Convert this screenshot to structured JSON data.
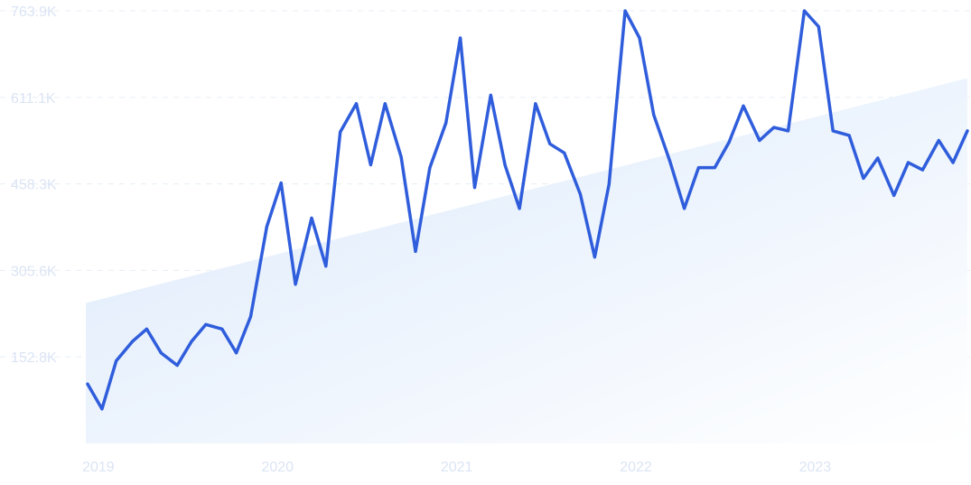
{
  "colors": {
    "line": "#2f5ddc",
    "trend_fill_start": "#dbe9fb",
    "trend_fill_end": "#ffffff",
    "grid": "#e8eef7",
    "tick_label": "#dbe4f4"
  },
  "chart_data": {
    "type": "line",
    "title": "",
    "xlabel": "",
    "ylabel": "",
    "grid": true,
    "legend": "none",
    "y_ticks": [
      "152.8K",
      "305.6K",
      "458.3K",
      "611.1K",
      "763.9K"
    ],
    "y_tick_values": [
      152.8,
      305.6,
      458.3,
      611.1,
      763.9
    ],
    "x_ticks": [
      "2019",
      "2020",
      "2021",
      "2022",
      "2023"
    ],
    "x_tick_values": [
      2019,
      2020,
      2021,
      2022,
      2023
    ],
    "xlim": [
      2018.93,
      2023.77
    ],
    "ylim": [
      0,
      763.9
    ],
    "series": [
      {
        "values": [
          [
            2018.94,
            105
          ],
          [
            2019.02,
            61
          ],
          [
            2019.1,
            146
          ],
          [
            2019.19,
            180
          ],
          [
            2019.27,
            202
          ],
          [
            2019.35,
            160
          ],
          [
            2019.44,
            138
          ],
          [
            2019.52,
            180
          ],
          [
            2019.6,
            210
          ],
          [
            2019.69,
            202
          ],
          [
            2019.77,
            160
          ],
          [
            2019.85,
            224
          ],
          [
            2019.94,
            383
          ],
          [
            2020.02,
            460
          ],
          [
            2020.1,
            281
          ],
          [
            2020.19,
            398
          ],
          [
            2020.27,
            313
          ],
          [
            2020.35,
            550
          ],
          [
            2020.44,
            600
          ],
          [
            2020.52,
            492
          ],
          [
            2020.6,
            600
          ],
          [
            2020.69,
            506
          ],
          [
            2020.77,
            339
          ],
          [
            2020.85,
            487
          ],
          [
            2020.94,
            566
          ],
          [
            2021.02,
            716
          ],
          [
            2021.1,
            452
          ],
          [
            2021.19,
            615
          ],
          [
            2021.27,
            491
          ],
          [
            2021.35,
            415
          ],
          [
            2021.44,
            600
          ],
          [
            2021.52,
            529
          ],
          [
            2021.6,
            513
          ],
          [
            2021.69,
            440
          ],
          [
            2021.77,
            329
          ],
          [
            2021.85,
            458
          ],
          [
            2021.94,
            763.9
          ],
          [
            2022.02,
            716
          ],
          [
            2022.1,
            580
          ],
          [
            2022.19,
            498
          ],
          [
            2022.27,
            415
          ],
          [
            2022.35,
            487
          ],
          [
            2022.44,
            487
          ],
          [
            2022.52,
            532
          ],
          [
            2022.6,
            596
          ],
          [
            2022.69,
            535
          ],
          [
            2022.77,
            558
          ],
          [
            2022.85,
            552
          ],
          [
            2022.94,
            763.9
          ],
          [
            2023.02,
            736
          ],
          [
            2023.1,
            552
          ],
          [
            2023.19,
            544
          ],
          [
            2023.27,
            468
          ],
          [
            2023.35,
            504
          ],
          [
            2023.44,
            438
          ],
          [
            2023.52,
            496
          ],
          [
            2023.6,
            483
          ],
          [
            2023.69,
            535
          ],
          [
            2023.77,
            496
          ],
          [
            2023.85,
            552
          ]
        ]
      }
    ],
    "trend": {
      "type": "area",
      "start": [
        2018.93,
        248
      ],
      "end": [
        2023.85,
        645
      ]
    }
  }
}
